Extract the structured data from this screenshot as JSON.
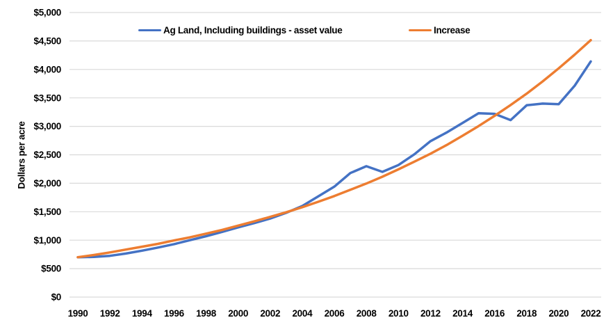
{
  "chart_data": {
    "type": "line",
    "title": "",
    "xlabel": "",
    "ylabel": "Dollars per acre",
    "x": [
      1990,
      1991,
      1992,
      1993,
      1994,
      1995,
      1996,
      1997,
      1998,
      1999,
      2000,
      2001,
      2002,
      2003,
      2004,
      2005,
      2006,
      2007,
      2008,
      2009,
      2010,
      2011,
      2012,
      2013,
      2014,
      2015,
      2016,
      2017,
      2018,
      2019,
      2020,
      2021,
      2022
    ],
    "x_tick_labels": [
      "1990",
      "1992",
      "1994",
      "1996",
      "1998",
      "2000",
      "2002",
      "2004",
      "2006",
      "2008",
      "2010",
      "2012",
      "2014",
      "2016",
      "2018",
      "2020",
      "2022"
    ],
    "x_tick_step": 2,
    "ylim": [
      0,
      5000
    ],
    "y_tick_interval": 500,
    "y_tick_labels": [
      "$0",
      "$500",
      "$1,000",
      "$1,500",
      "$2,000",
      "$2,500",
      "$3,000",
      "$3,500",
      "$4,000",
      "$4,500",
      "$5,000"
    ],
    "grid": "horizontal",
    "legend_position": "top",
    "series": [
      {
        "name": "Ag Land, Including buildings - asset value",
        "color": "#4472C4",
        "values": [
          700,
          705,
          725,
          765,
          815,
          870,
          930,
          1000,
          1070,
          1145,
          1225,
          1300,
          1380,
          1480,
          1600,
          1770,
          1940,
          2180,
          2300,
          2200,
          2320,
          2510,
          2740,
          2890,
          3060,
          3230,
          3220,
          3110,
          3370,
          3400,
          3390,
          3715,
          4140
        ]
      },
      {
        "name": "Increase",
        "color": "#ED7D31",
        "values": [
          700,
          740,
          785,
          835,
          885,
          935,
          995,
          1050,
          1115,
          1180,
          1255,
          1330,
          1410,
          1490,
          1580,
          1675,
          1775,
          1885,
          1995,
          2115,
          2245,
          2380,
          2520,
          2670,
          2835,
          3005,
          3185,
          3375,
          3575,
          3790,
          4020,
          4260,
          4515
        ]
      }
    ]
  },
  "colors": {
    "grid": "#D9D9D9",
    "text": "#000000",
    "background": "#FFFFFF"
  }
}
